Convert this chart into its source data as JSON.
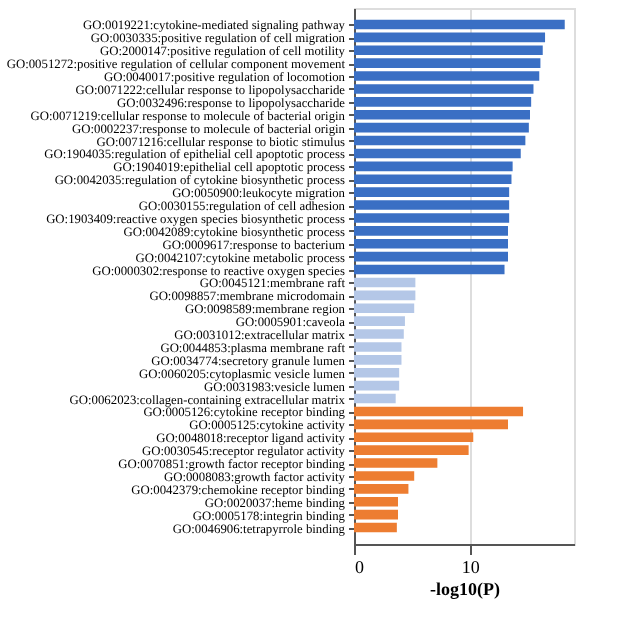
{
  "chart_data": {
    "type": "bar",
    "orientation": "horizontal",
    "xlabel": "-log10(P)",
    "categories": [
      "GO:0019221:cytokine-mediated signaling pathway",
      "GO:0030335:positive regulation of cell migration",
      "GO:2000147:positive regulation of cell motility",
      "GO:0051272:positive regulation of cellular component movement",
      "GO:0040017:positive regulation of locomotion",
      "GO:0071222:cellular response to lipopolysaccharide",
      "GO:0032496:response to lipopolysaccharide",
      "GO:0071219:cellular response to molecule of bacterial origin",
      "GO:0002237:response to molecule of bacterial origin",
      "GO:0071216:cellular response to biotic stimulus",
      "GO:1904035:regulation of epithelial cell apoptotic process",
      "GO:1904019:epithelial cell apoptotic process",
      "GO:0042035:regulation of cytokine biosynthetic process",
      "GO:0050900:leukocyte migration",
      "GO:0030155:regulation of cell adhesion",
      "GO:1903409:reactive oxygen species biosynthetic process",
      "GO:0042089:cytokine biosynthetic process",
      "GO:0009617:response to bacterium",
      "GO:0042107:cytokine metabolic process",
      "GO:0000302:response to reactive oxygen species",
      "GO:0045121:membrane raft",
      "GO:0098857:membrane microdomain",
      "GO:0098589:membrane region",
      "GO:0005901:caveola",
      "GO:0031012:extracellular matrix",
      "GO:0044853:plasma membrane raft",
      "GO:0034774:secretory granule lumen",
      "GO:0060205:cytoplasmic vesicle lumen",
      "GO:0031983:vesicle lumen",
      "GO:0062023:collagen-containing extracellular matrix",
      "GO:0005126:cytokine receptor binding",
      "GO:0005125:cytokine activity",
      "GO:0048018:receptor ligand activity",
      "GO:0030545:receptor regulator activity",
      "GO:0070851:growth factor receptor binding",
      "GO:0008083:growth factor activity",
      "GO:0042379:chemokine receptor binding",
      "GO:0020037:heme binding",
      "GO:0005178:integrin binding",
      "GO:0046906:tetrapyrrole binding"
    ],
    "values": [
      18.2,
      16.5,
      16.3,
      16.1,
      16.0,
      15.5,
      15.3,
      15.2,
      15.1,
      14.8,
      14.4,
      13.7,
      13.6,
      13.4,
      13.4,
      13.4,
      13.3,
      13.3,
      13.3,
      13.0,
      5.3,
      5.3,
      5.2,
      4.4,
      4.3,
      4.1,
      4.1,
      3.9,
      3.9,
      3.6,
      14.6,
      13.3,
      10.3,
      9.9,
      7.2,
      5.2,
      4.7,
      3.8,
      3.8,
      3.7
    ],
    "colors": [
      "#3a6fc4",
      "#3a6fc4",
      "#3a6fc4",
      "#3a6fc4",
      "#3a6fc4",
      "#3a6fc4",
      "#3a6fc4",
      "#3a6fc4",
      "#3a6fc4",
      "#3a6fc4",
      "#3a6fc4",
      "#3a6fc4",
      "#3a6fc4",
      "#3a6fc4",
      "#3a6fc4",
      "#3a6fc4",
      "#3a6fc4",
      "#3a6fc4",
      "#3a6fc4",
      "#3a6fc4",
      "#b4c7e7",
      "#b4c7e7",
      "#b4c7e7",
      "#b4c7e7",
      "#b4c7e7",
      "#b4c7e7",
      "#b4c7e7",
      "#b4c7e7",
      "#b4c7e7",
      "#b4c7e7",
      "#ed7d31",
      "#ed7d31",
      "#ed7d31",
      "#ed7d31",
      "#ed7d31",
      "#ed7d31",
      "#ed7d31",
      "#ed7d31",
      "#ed7d31",
      "#ed7d31"
    ],
    "xlim": [
      0,
      19
    ],
    "xticks": [
      0,
      10
    ],
    "grid": "x"
  }
}
